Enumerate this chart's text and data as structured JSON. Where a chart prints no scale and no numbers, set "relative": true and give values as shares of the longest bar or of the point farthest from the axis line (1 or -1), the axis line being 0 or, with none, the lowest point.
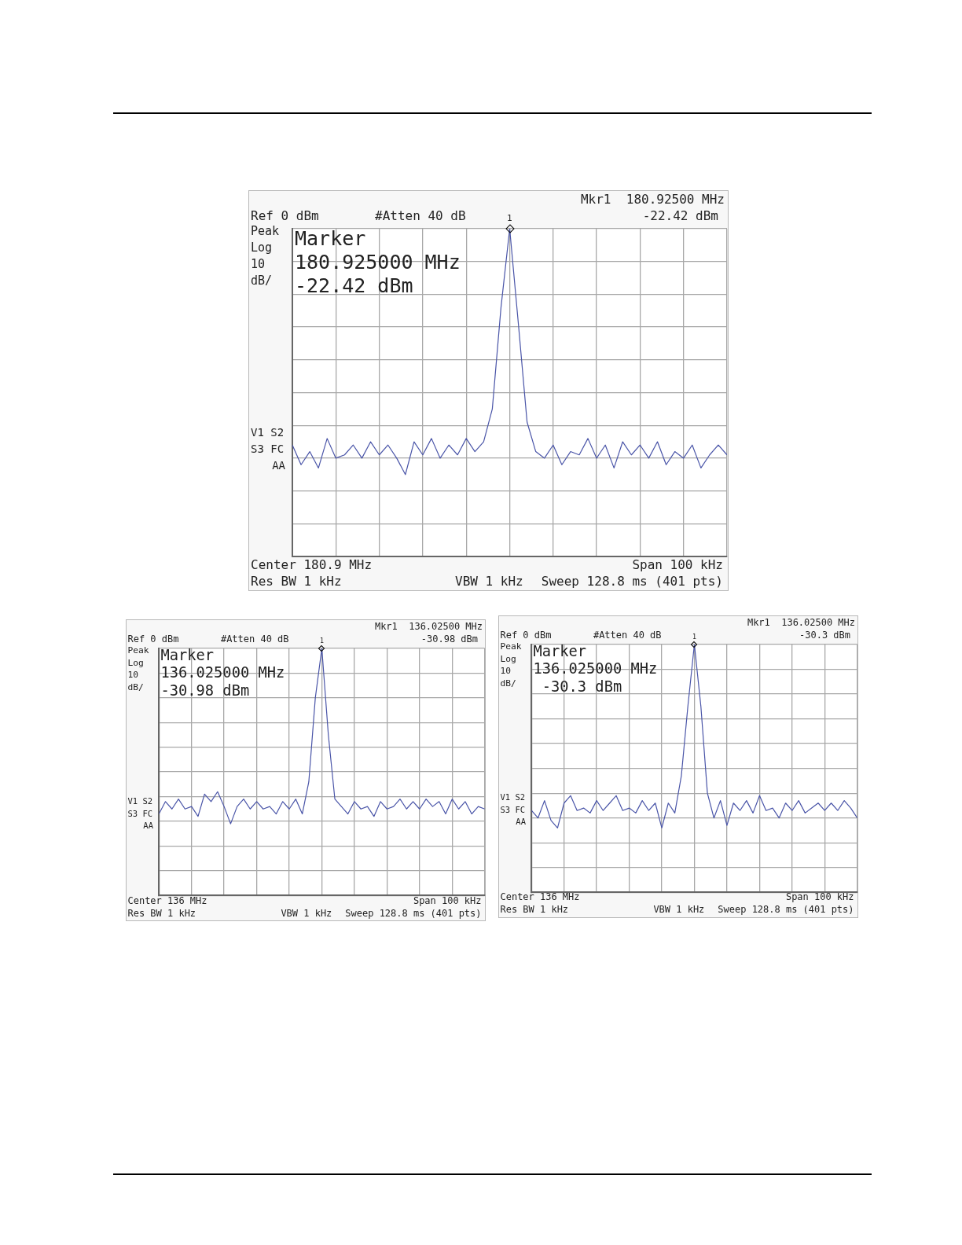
{
  "chart_data": [
    {
      "type": "line",
      "relative": true,
      "tick_labels": false,
      "grid": true,
      "categories": [
        null,
        null,
        null,
        null,
        null,
        null,
        null,
        null,
        null,
        null,
        null,
        null,
        null,
        null,
        null,
        null,
        null,
        null,
        null,
        null,
        null,
        null,
        null,
        null,
        null,
        null,
        null,
        null,
        null,
        null,
        null,
        null,
        null,
        null,
        null,
        null,
        null,
        null,
        null,
        null,
        null,
        null,
        null,
        null,
        null,
        null,
        null,
        null,
        null,
        null,
        null
      ],
      "series": [
        {
          "color": "#4a55a8",
          "values": [
            0.34,
            0.28,
            0.32,
            0.27,
            0.36,
            0.3,
            0.31,
            0.34,
            0.3,
            0.35,
            0.31,
            0.34,
            0.3,
            0.25,
            0.35,
            0.31,
            0.36,
            0.3,
            0.34,
            0.31,
            0.36,
            0.32,
            0.35,
            0.45,
            0.76,
            1,
            0.71,
            0.41,
            0.32,
            0.3,
            0.34,
            0.28,
            0.32,
            0.31,
            0.36,
            0.3,
            0.34,
            0.27,
            0.35,
            0.31,
            0.34,
            0.3,
            0.35,
            0.28,
            0.32,
            0.3,
            0.34,
            0.27,
            0.31,
            0.34,
            0.31
          ]
        }
      ],
      "annotations": [
        "Mkr1  180.92500 MHz",
        "Ref 0 dBm",
        "#Atten 40 dB",
        "-22.42 dBm",
        "Peak",
        "Log",
        "10",
        "dB/",
        "Marker",
        "180.925000 MHz",
        "-22.42 dBm",
        "V1 S2",
        "S3 FC",
        "AA",
        "Center 180.9 MHz",
        "Span 100 kHz",
        "Res BW 1 kHz",
        "VBW 1 kHz",
        "Sweep 128.8 ms (401 pts)",
        "1"
      ]
    },
    {
      "type": "line",
      "relative": true,
      "tick_labels": false,
      "grid": true,
      "categories": [
        null,
        null,
        null,
        null,
        null,
        null,
        null,
        null,
        null,
        null,
        null,
        null,
        null,
        null,
        null,
        null,
        null,
        null,
        null,
        null,
        null,
        null,
        null,
        null,
        null,
        null,
        null,
        null,
        null,
        null,
        null,
        null,
        null,
        null,
        null,
        null,
        null,
        null,
        null,
        null,
        null,
        null,
        null,
        null,
        null,
        null,
        null,
        null,
        null,
        null,
        null
      ],
      "series": [
        {
          "color": "#4a55a8",
          "values": [
            0.33,
            0.38,
            0.35,
            0.39,
            0.35,
            0.36,
            0.32,
            0.41,
            0.38,
            0.42,
            0.36,
            0.29,
            0.36,
            0.39,
            0.35,
            0.38,
            0.35,
            0.36,
            0.33,
            0.38,
            0.35,
            0.39,
            0.33,
            0.46,
            0.8,
            1,
            0.65,
            0.39,
            0.36,
            0.33,
            0.38,
            0.35,
            0.36,
            0.32,
            0.38,
            0.35,
            0.36,
            0.39,
            0.35,
            0.38,
            0.35,
            0.39,
            0.36,
            0.38,
            0.33,
            0.39,
            0.35,
            0.38,
            0.33,
            0.36,
            0.35
          ]
        }
      ],
      "annotations": [
        "Mkr1  136.02500 MHz",
        "Ref 0 dBm",
        "#Atten 40 dB",
        "-30.98 dBm",
        "Peak",
        "Log",
        "10",
        "dB/",
        "Marker",
        "136.025000 MHz",
        "-30.98 dBm",
        "V1 S2",
        "S3 FC",
        "AA",
        "Center 136 MHz",
        "Span 100 kHz",
        "Res BW 1 kHz",
        "VBW 1 kHz",
        "Sweep 128.8 ms (401 pts)",
        "1"
      ]
    },
    {
      "type": "line",
      "relative": true,
      "tick_labels": false,
      "grid": true,
      "categories": [
        null,
        null,
        null,
        null,
        null,
        null,
        null,
        null,
        null,
        null,
        null,
        null,
        null,
        null,
        null,
        null,
        null,
        null,
        null,
        null,
        null,
        null,
        null,
        null,
        null,
        null,
        null,
        null,
        null,
        null,
        null,
        null,
        null,
        null,
        null,
        null,
        null,
        null,
        null,
        null,
        null,
        null,
        null,
        null,
        null,
        null,
        null,
        null,
        null,
        null,
        null
      ],
      "series": [
        {
          "color": "#4a55a8",
          "values": [
            0.33,
            0.3,
            0.37,
            0.29,
            0.26,
            0.36,
            0.39,
            0.33,
            0.34,
            0.32,
            0.37,
            0.33,
            0.36,
            0.39,
            0.33,
            0.34,
            0.32,
            0.37,
            0.33,
            0.36,
            0.26,
            0.36,
            0.32,
            0.47,
            0.75,
            1,
            0.75,
            0.4,
            0.3,
            0.37,
            0.27,
            0.36,
            0.33,
            0.37,
            0.32,
            0.39,
            0.33,
            0.34,
            0.3,
            0.36,
            0.33,
            0.37,
            0.32,
            0.34,
            0.36,
            0.33,
            0.36,
            0.33,
            0.37,
            0.34,
            0.3
          ]
        }
      ],
      "annotations": [
        "Mkr1  136.02500 MHz",
        "Ref 0 dBm",
        "#Atten 40 dB",
        "-30.3 dBm",
        "Peak",
        "Log",
        "10",
        "dB/",
        "Marker",
        "136.025000 MHz",
        " -30.3 dBm",
        "V1 S2",
        "S3 FC",
        "AA",
        "Center 136 MHz",
        "Span 100 kHz",
        "Res BW 1 kHz",
        "VBW 1 kHz",
        "Sweep 128.8 ms (401 pts)",
        "1"
      ]
    }
  ]
}
